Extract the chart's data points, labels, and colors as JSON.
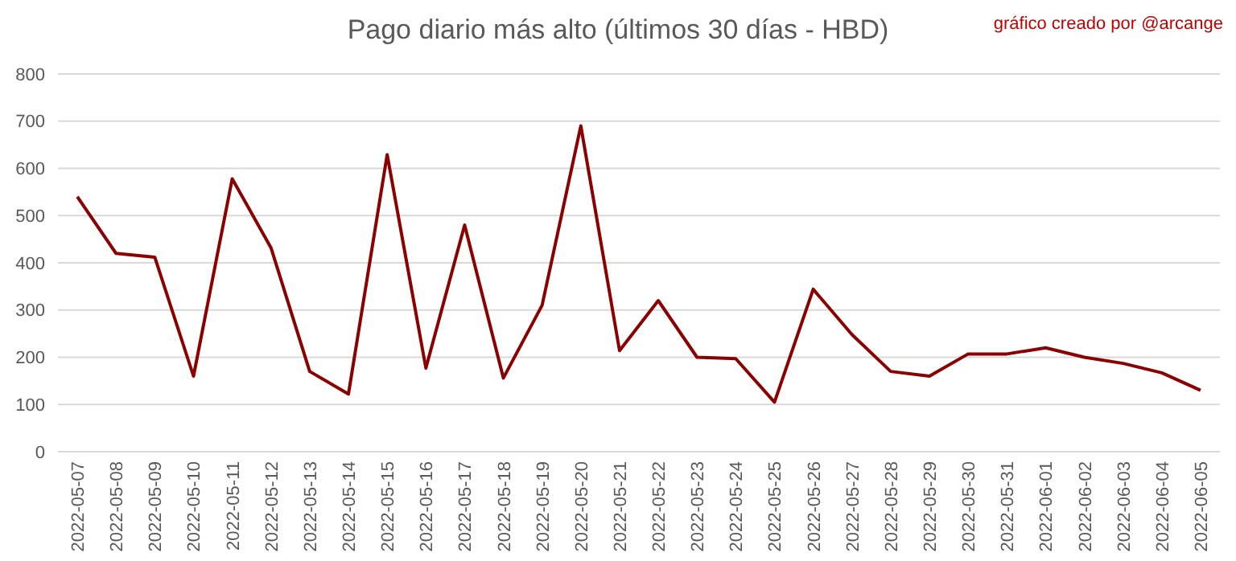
{
  "chart_data": {
    "type": "line",
    "title": "Pago diario más alto (últimos 30 días - HBD)",
    "annotations": [
      "gráfico creado por @arcange"
    ],
    "categories": [
      "2022-05-07",
      "2022-05-08",
      "2022-05-09",
      "2022-05-10",
      "2022-05-11",
      "2022-05-12",
      "2022-05-13",
      "2022-05-14",
      "2022-05-15",
      "2022-05-16",
      "2022-05-17",
      "2022-05-18",
      "2022-05-19",
      "2022-05-20",
      "2022-05-21",
      "2022-05-22",
      "2022-05-23",
      "2022-05-24",
      "2022-05-25",
      "2022-05-26",
      "2022-05-27",
      "2022-05-28",
      "2022-05-29",
      "2022-05-30",
      "2022-05-31",
      "2022-06-01",
      "2022-06-02",
      "2022-06-03",
      "2022-06-04",
      "2022-06-05"
    ],
    "series": [
      {
        "color": "#8b0000",
        "values": [
          540,
          420,
          412,
          160,
          578,
          432,
          170,
          122,
          629,
          177,
          480,
          156,
          310,
          690,
          214,
          320,
          200,
          197,
          105,
          344,
          248,
          170,
          160,
          207,
          207,
          220,
          200,
          187,
          167,
          130
        ]
      }
    ],
    "ylim": [
      0,
      800
    ],
    "yticks": [
      0,
      100,
      200,
      300,
      400,
      500,
      600,
      700,
      800
    ],
    "grid": "y",
    "marker": "none",
    "line_style": "solid"
  }
}
